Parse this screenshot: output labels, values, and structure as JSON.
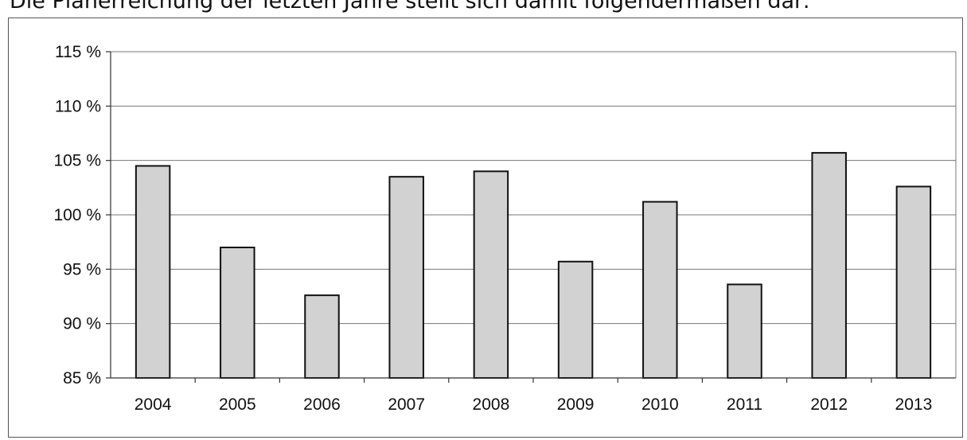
{
  "heading": "Die Planerreichung der letzten Jahre stellt sich damit folgendermaßen dar:",
  "colors": {
    "bar_fill": "#d2d2d2",
    "bar_stroke": "#111111",
    "grid": "#777777"
  },
  "chart_data": {
    "type": "bar",
    "title": "",
    "xlabel": "",
    "ylabel": "",
    "categories": [
      "2004",
      "2005",
      "2006",
      "2007",
      "2008",
      "2009",
      "2010",
      "2011",
      "2012",
      "2013"
    ],
    "values": [
      104.5,
      97.0,
      92.6,
      103.5,
      104.0,
      95.7,
      101.2,
      93.6,
      105.7,
      102.6
    ],
    "ylim": [
      85,
      115
    ],
    "yticks": [
      85,
      90,
      95,
      100,
      105,
      110,
      115
    ],
    "ytick_labels": [
      "85 %",
      "90 %",
      "95 %",
      "100 %",
      "105 %",
      "110 %",
      "115 %"
    ],
    "grid": true,
    "legend": "none"
  }
}
